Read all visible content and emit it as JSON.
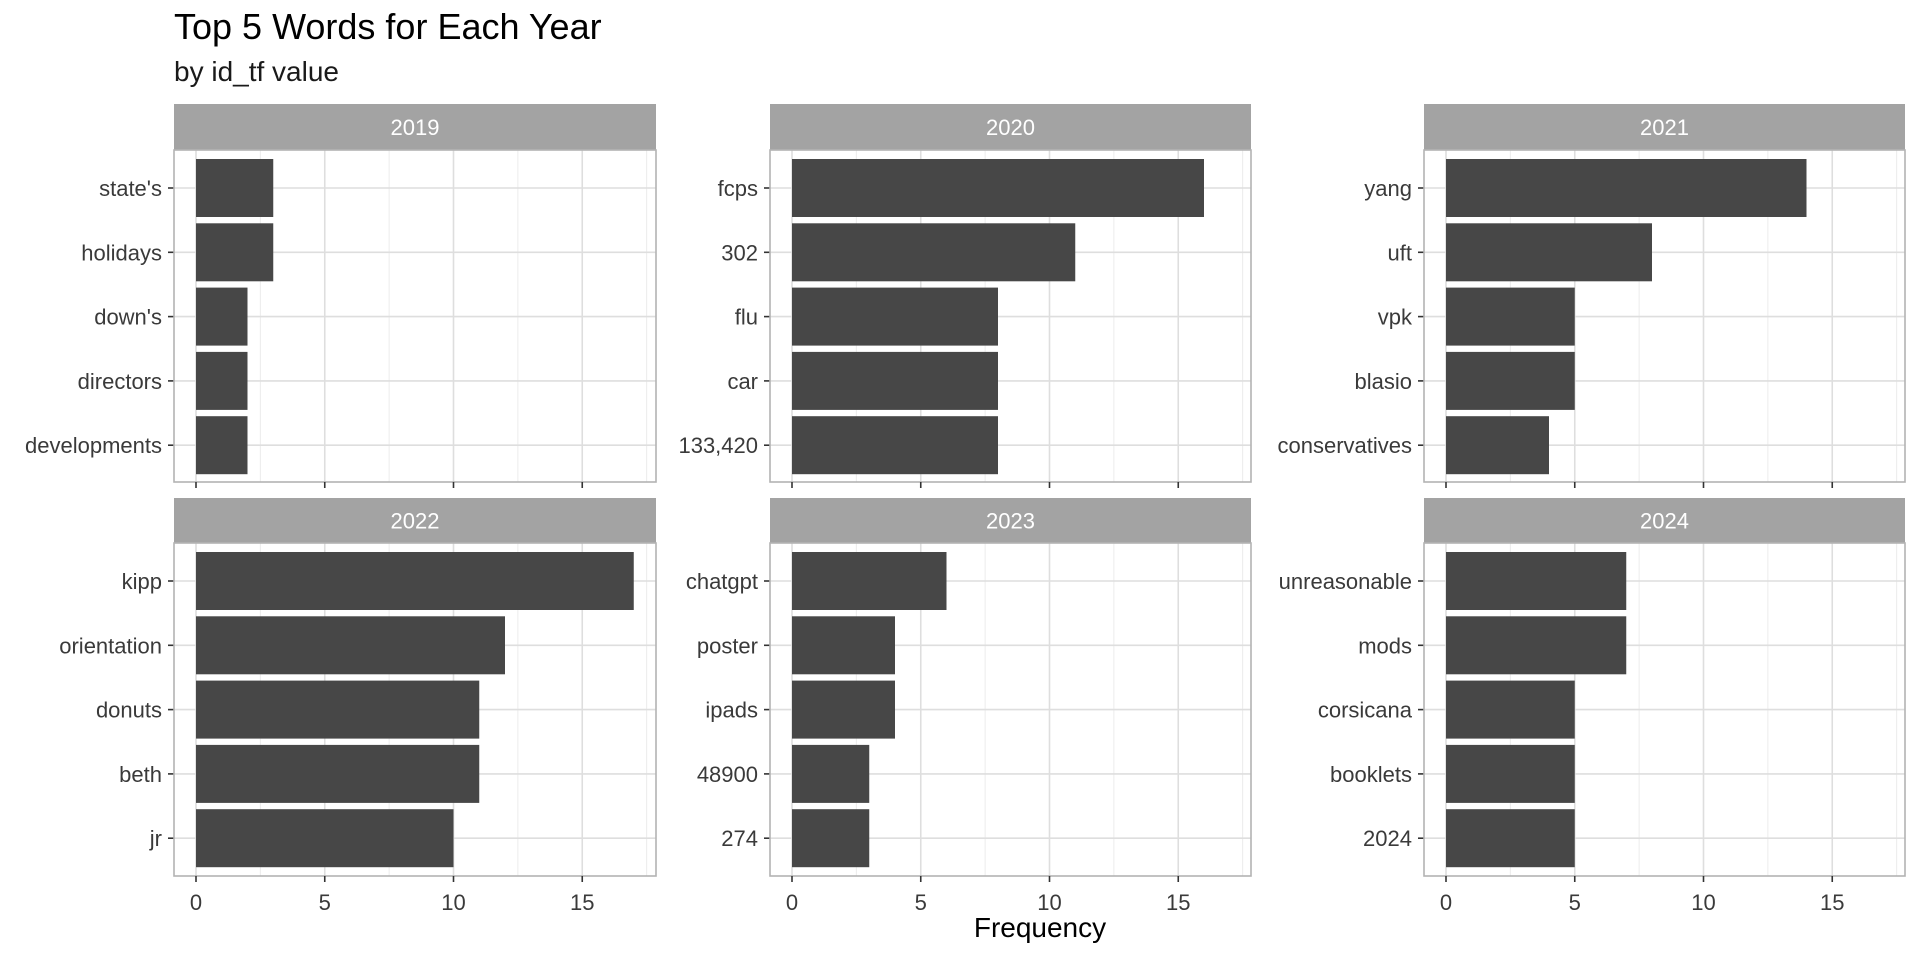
{
  "chart_data": {
    "type": "bar",
    "orientation": "horizontal",
    "title": "Top 5 Words for Each Year",
    "subtitle": "by id_tf value",
    "xlabel": "Frequency",
    "ylabel": "",
    "xlim": [
      0,
      18
    ],
    "xticks": [
      0,
      5,
      10,
      15
    ],
    "grid": true,
    "legend": "none",
    "colors": {
      "bar": "#474747",
      "strip": "#a3a3a3",
      "strip_text": "#ffffff",
      "panel_border": "#b3b3b3",
      "grid": "#dedede"
    },
    "facets": [
      {
        "label": "2019",
        "categories": [
          "state's",
          "holidays",
          "down's",
          "directors",
          "developments"
        ],
        "values": [
          3,
          3,
          2,
          2,
          2
        ]
      },
      {
        "label": "2020",
        "categories": [
          "fcps",
          "302",
          "flu",
          "car",
          "133,420"
        ],
        "values": [
          16,
          11,
          8,
          8,
          8
        ]
      },
      {
        "label": "2021",
        "categories": [
          "yang",
          "uft",
          "vpk",
          "blasio",
          "conservatives"
        ],
        "values": [
          14,
          8,
          5,
          5,
          4
        ]
      },
      {
        "label": "2022",
        "categories": [
          "kipp",
          "orientation",
          "donuts",
          "beth",
          "jr"
        ],
        "values": [
          17,
          12,
          11,
          11,
          10
        ]
      },
      {
        "label": "2023",
        "categories": [
          "chatgpt",
          "poster",
          "ipads",
          "48900",
          "274"
        ],
        "values": [
          6,
          4,
          4,
          3,
          3
        ]
      },
      {
        "label": "2024",
        "categories": [
          "unreasonable",
          "mods",
          "corsicana",
          "booklets",
          "2024"
        ],
        "values": [
          7,
          7,
          5,
          5,
          5
        ]
      }
    ]
  }
}
